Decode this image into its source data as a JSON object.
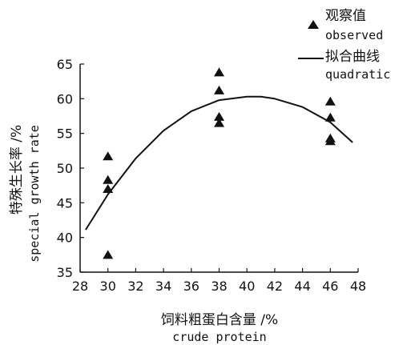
{
  "chart_data": {
    "type": "scatter",
    "xlabel_cn": "饲料粗蛋白含量 /%",
    "xlabel_en": "crude protein",
    "ylabel_cn": "特殊生长率 /%",
    "ylabel_en": "special growth rate",
    "xlim": [
      28,
      48
    ],
    "ylim": [
      35,
      65
    ],
    "xticks": [
      28,
      30,
      32,
      34,
      36,
      38,
      40,
      42,
      44,
      46,
      48
    ],
    "yticks": [
      35,
      40,
      45,
      50,
      55,
      60,
      65
    ],
    "grid": false,
    "legend_position": "top-right",
    "legend": {
      "observed_cn": "观察值",
      "observed_en": "observed",
      "fit_cn": "拟合曲线",
      "fit_en": "quadratic"
    },
    "series": [
      {
        "name": "observed",
        "kind": "points",
        "x": [
          30,
          30,
          30,
          30,
          38,
          38,
          38,
          38,
          46,
          46,
          46,
          46
        ],
        "y": [
          51.7,
          48.3,
          47.0,
          37.5,
          63.8,
          61.2,
          57.4,
          56.5,
          59.6,
          57.3,
          54.3,
          53.9
        ]
      },
      {
        "name": "quadratic",
        "kind": "line",
        "x": [
          28.4,
          30,
          32,
          34,
          36,
          38,
          40,
          41,
          42,
          44,
          46,
          47.6
        ],
        "y": [
          41.1,
          46.2,
          51.4,
          55.4,
          58.2,
          59.8,
          60.3,
          60.3,
          60.0,
          58.8,
          56.6,
          53.7
        ]
      }
    ],
    "colors": {
      "ink": "#111111"
    }
  }
}
